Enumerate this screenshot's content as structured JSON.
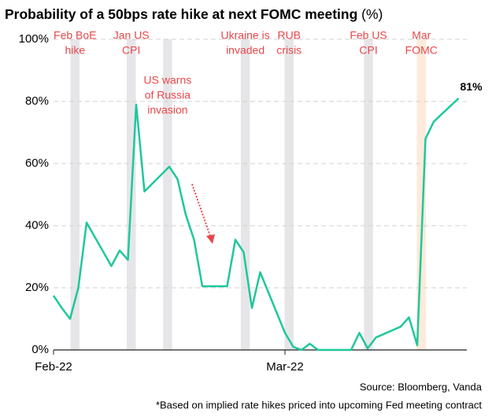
{
  "chart_data": {
    "type": "line",
    "title": "Probability of a 50bps rate hike at next FOMC meeting",
    "title_suffix": "(%)",
    "x": [
      0,
      1,
      2,
      3,
      4,
      7,
      8,
      9,
      10,
      11,
      14,
      15,
      16,
      17,
      18,
      21,
      22,
      23,
      24,
      25,
      28,
      29,
      30,
      31,
      32,
      35,
      36,
      37,
      38,
      39,
      42,
      43,
      44,
      45,
      46,
      49
    ],
    "values": [
      17.5,
      13.5,
      10,
      20,
      41,
      27,
      32,
      29,
      79,
      51,
      59,
      55,
      43.5,
      35.5,
      20.5,
      20.5,
      35.5,
      31.5,
      13.5,
      25,
      5.5,
      1,
      0,
      2,
      0,
      0,
      0,
      5.5,
      0.5,
      4,
      7.5,
      10.5,
      1.5,
      68,
      73.5,
      81
    ],
    "value_labels": [
      null,
      null,
      null,
      null,
      null,
      null,
      null,
      null,
      null,
      null,
      null,
      null,
      null,
      null,
      null,
      null,
      null,
      null,
      null,
      null,
      null,
      null,
      null,
      null,
      null,
      null,
      null,
      null,
      null,
      null,
      null,
      null,
      null,
      null,
      null,
      "81%"
    ],
    "color": "#1fc79b",
    "xlim": [
      0,
      50
    ],
    "xticks": [
      {
        "value": 0,
        "label": "Feb-22"
      },
      {
        "value": 28,
        "label": "Mar-22"
      }
    ],
    "ylim": [
      0,
      100
    ],
    "yticks": [
      {
        "value": 0,
        "label": "0%"
      },
      {
        "value": 20,
        "label": "20%"
      },
      {
        "value": 40,
        "label": "40%"
      },
      {
        "value": 60,
        "label": "60%"
      },
      {
        "value": 80,
        "label": "80%"
      },
      {
        "value": 100,
        "label": "100%"
      }
    ],
    "grid": true,
    "events": [
      {
        "x": 2.6,
        "label": [
          "Feb BoE",
          "hike"
        ],
        "color": "#e6e6e9"
      },
      {
        "x": 9.4,
        "label": [
          "Jan US",
          "CPI"
        ],
        "color": "#e6e6e9"
      },
      {
        "x": 13.8,
        "label": [
          "US warns",
          "of Russia",
          "invasion"
        ],
        "color": "#e6e6e9"
      },
      {
        "x": 23.2,
        "label": [
          "Ukraine is",
          "invaded"
        ],
        "color": "#e6e6e9"
      },
      {
        "x": 28.5,
        "label": [
          "RUB",
          "crisis"
        ],
        "color": "#e6e6e9"
      },
      {
        "x": 38.1,
        "label": [
          "Feb US",
          "CPI"
        ],
        "color": "#e6e6e9"
      },
      {
        "x": 44.5,
        "label": [
          "Mar",
          "FOMC"
        ],
        "color": "#fdeadb"
      }
    ],
    "source": "Source: Bloomberg, Vanda",
    "footnote": "*Based on implied rate hikes priced into upcoming Fed meeting contract"
  }
}
